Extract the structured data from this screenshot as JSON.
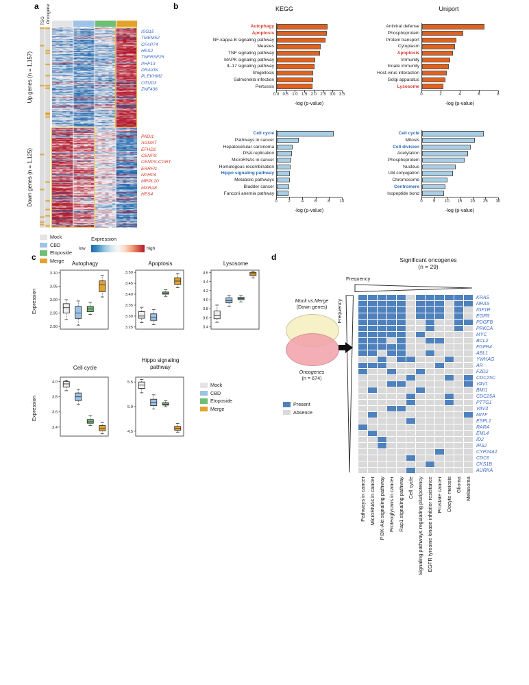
{
  "panel_labels": {
    "a": "a",
    "b": "b",
    "c": "c",
    "d": "d"
  },
  "panel_a": {
    "annotation_headers": [
      "TSG",
      "Oncogene"
    ],
    "up_axis_label": "Up genes (n = 1,157)",
    "down_axis_label": "Down genes (n = 1,125)",
    "up_genes": [
      "ISG15",
      "TMEM52",
      "CFAP74",
      "HES2",
      "TNFRSF25",
      "PHF13",
      "DRAXIN",
      "PLEKHM2",
      "OTUD3",
      "ZNF436"
    ],
    "down_genes": [
      "PADI1",
      "AGMAT",
      "EFHD2",
      "CENPS",
      "CENPS-CORT",
      "ERRFI1",
      "NPHP4",
      "MRPL20",
      "MXRA8",
      "HES4"
    ],
    "up_gene_color": "#3b6ac4",
    "down_gene_color": "#d63b2f",
    "legend": [
      {
        "label": "Mock",
        "color": "#e4e4e4"
      },
      {
        "label": "CBD",
        "color": "#9dc3e6"
      },
      {
        "label": "Etoposide",
        "color": "#6fbf73"
      },
      {
        "label": "Merge",
        "color": "#e2a32d"
      }
    ],
    "expression_legend": {
      "title": "Expression",
      "low": "low",
      "high": "high"
    }
  },
  "panel_b": {
    "left_title": "KEGG",
    "right_title": "Uniport"
  },
  "panel_c": {
    "ylabel": "Expression",
    "legend": [
      {
        "label": "Mock",
        "color": "#e4e4e4"
      },
      {
        "label": "CBD",
        "color": "#9dc3e6"
      },
      {
        "label": "Etoposide",
        "color": "#6fbf73"
      },
      {
        "label": "Merge",
        "color": "#e2a32d"
      }
    ]
  },
  "panel_d": {
    "title_line1": "Significant oncogenes",
    "title_line2": "(n = 29)",
    "frequency_label": "Frequency",
    "venn_top_line1": "Mock vs.Merge",
    "venn_top_line2": "(Down genes)",
    "venn_bottom_line1": "Oncogenes",
    "venn_bottom_line2": "(n = 674)",
    "legend_present": "Present",
    "legend_absent": "Absence"
  },
  "chart_data": [
    {
      "id": "heatmap_up_down",
      "type": "heatmap",
      "col_groups": [
        "Mock",
        "CBD",
        "Etoposide",
        "Merge"
      ],
      "annotation_cols": [
        "TSG",
        "Oncogene"
      ],
      "row_blocks": [
        {
          "label": "Up genes (n = 1,157)",
          "n_genes": 1157,
          "rows_drawn": 146,
          "group_bias": [
            -0.35,
            -0.55,
            -0.35,
            0.8
          ]
        },
        {
          "label": "Down genes (n = 1,125)",
          "n_genes": 1125,
          "rows_drawn": 146,
          "group_bias": [
            0.8,
            0.5,
            -0.05,
            -0.7
          ]
        }
      ],
      "highlights": [
        {
          "block": "up",
          "start_group": 3,
          "span": 1
        },
        {
          "block": "down",
          "start_group": 0,
          "span": 2
        }
      ],
      "colorscale": {
        "low_color": "#2166ac",
        "mid_color": "#f7f7f7",
        "high_color": "#b2182b",
        "low_label": "low",
        "high_label": "high",
        "title": "Expression"
      }
    },
    {
      "id": "kegg_up",
      "type": "bar",
      "orientation": "horizontal",
      "title": "KEGG",
      "xlabel": "-log (p-value)",
      "xlim": [
        0,
        3.5
      ],
      "xticks": [
        "0.0",
        "0.5",
        "1.0",
        "1.5",
        "2.0",
        "2.5",
        "3.0",
        "3.5"
      ],
      "bar_color": "#e2611c",
      "categories": [
        "Autophagy",
        "Apoptosis",
        "NF-kappa B signaling pathway",
        "Measles",
        "TNF signaling pathway",
        "MAPK signaling pathway",
        "IL-17 signaling pathway",
        "Shigellosis",
        "Salmonella infection",
        "Pertussis"
      ],
      "values": [
        2.7,
        2.65,
        2.6,
        2.35,
        2.3,
        2.05,
        2.0,
        1.95,
        1.95,
        1.9
      ],
      "highlight": {
        "labels": [
          "Autophagy",
          "Apoptosis"
        ],
        "color": "#d63b2f"
      }
    },
    {
      "id": "uniport_up",
      "type": "bar",
      "orientation": "horizontal",
      "title": "Uniport",
      "xlabel": "-log (p-value)",
      "xlim": [
        0,
        8
      ],
      "xticks": [
        "0",
        "2",
        "4",
        "6",
        "8"
      ],
      "bar_color": "#e2611c",
      "categories": [
        "Antiviral defense",
        "Phosphoprotein",
        "Protein transport",
        "Cytoplasm",
        "Apoptosis",
        "Immunity",
        "Innate immunity",
        "Host-virus interaction",
        "Golgi apparatus",
        "Lysosome"
      ],
      "values": [
        6.5,
        4.3,
        3.6,
        3.4,
        3.2,
        2.9,
        2.8,
        2.6,
        2.4,
        2.2
      ],
      "highlight": {
        "labels": [
          "Apoptosis",
          "Lysosome"
        ],
        "color": "#d63b2f"
      }
    },
    {
      "id": "kegg_down",
      "type": "bar",
      "orientation": "horizontal",
      "title": "",
      "xlabel": "-log (p-value)",
      "xlim": [
        0,
        10
      ],
      "xticks": [
        "0",
        "2",
        "4",
        "6",
        "8",
        "10"
      ],
      "bar_color": "#a8cfe5",
      "categories": [
        "Cell cycle",
        "Pathways in cancer",
        "Hepatocellular carcinoma",
        "DNA replication",
        "MicroRNAs in cancer",
        "Homologous recombination",
        "Hippo signaling pathway",
        "Metabolic pathways",
        "Bladder cancer",
        "Fanconi anemia pathway"
      ],
      "values": [
        8.6,
        3.3,
        2.4,
        2.3,
        2.2,
        2.1,
        2.0,
        2.0,
        1.9,
        1.8
      ],
      "highlight": {
        "labels": [
          "Cell cycle",
          "Hippo signaling pathway"
        ],
        "color": "#2e6db4"
      }
    },
    {
      "id": "uniport_down",
      "type": "bar",
      "orientation": "horizontal",
      "title": "",
      "xlabel": "-log (p-value)",
      "xlim": [
        0,
        30
      ],
      "xticks": [
        "0",
        "5",
        "10",
        "15",
        "20",
        "25",
        "30"
      ],
      "bar_color": "#a8cfe5",
      "categories": [
        "Cell cycle",
        "Mitosis",
        "Cell division",
        "Acetylation",
        "Phosphoprotein",
        "Nucleus",
        "Ubl conjugation",
        "Chromosome",
        "Centromere",
        "Isopeptide bond"
      ],
      "values": [
        24,
        20.5,
        19,
        18,
        16.5,
        13,
        12,
        10,
        9,
        8.5
      ],
      "highlight": {
        "labels": [
          "Cell cycle",
          "Cell division",
          "Centromere"
        ],
        "color": "#2e6db4"
      }
    },
    {
      "id": "box_autophagy",
      "type": "box",
      "title": "Autophagy",
      "ylabel": "Expression",
      "ylim": [
        2.89,
        3.11
      ],
      "yticks": [
        "2.90",
        "2.95",
        "3.00",
        "3.05",
        "3.10"
      ],
      "groups": [
        {
          "name": "Mock",
          "color": "#efefef",
          "lo": 2.925,
          "q1": 2.95,
          "med": 2.97,
          "q3": 2.985,
          "hi": 3.0
        },
        {
          "name": "CBD",
          "color": "#9dc3e6",
          "lo": 2.905,
          "q1": 2.93,
          "med": 2.95,
          "q3": 2.975,
          "hi": 2.995
        },
        {
          "name": "Etoposide",
          "color": "#6fbf73",
          "lo": 2.945,
          "q1": 2.955,
          "med": 2.965,
          "q3": 2.975,
          "hi": 2.99
        },
        {
          "name": "Merge",
          "color": "#e2a32d",
          "lo": 3.01,
          "q1": 3.03,
          "med": 3.055,
          "q3": 3.07,
          "hi": 3.09
        }
      ]
    },
    {
      "id": "box_apoptosis",
      "type": "box",
      "title": "Apoptosis",
      "ylabel": "Expression",
      "ylim": [
        3.24,
        3.51
      ],
      "yticks": [
        "3.25",
        "3.30",
        "3.35",
        "3.40",
        "3.45",
        "3.50"
      ],
      "groups": [
        {
          "name": "Mock",
          "color": "#efefef",
          "lo": 3.27,
          "q1": 3.29,
          "med": 3.3,
          "q3": 3.32,
          "hi": 3.34
        },
        {
          "name": "CBD",
          "color": "#9dc3e6",
          "lo": 3.26,
          "q1": 3.28,
          "med": 3.295,
          "q3": 3.31,
          "hi": 3.33
        },
        {
          "name": "Etoposide",
          "color": "#6fbf73",
          "lo": 3.39,
          "q1": 3.4,
          "med": 3.405,
          "q3": 3.41,
          "hi": 3.42
        },
        {
          "name": "Merge",
          "color": "#e2a32d",
          "lo": 3.43,
          "q1": 3.445,
          "med": 3.46,
          "q3": 3.475,
          "hi": 3.495
        }
      ]
    },
    {
      "id": "box_lysosome",
      "type": "box",
      "title": "Lysosome",
      "ylabel": "Expression",
      "ylim": [
        3.35,
        4.65
      ],
      "yticks": [
        "3.4",
        "3.6",
        "3.8",
        "4.0",
        "4.2",
        "4.4",
        "4.6"
      ],
      "groups": [
        {
          "name": "Mock",
          "color": "#efefef",
          "lo": 3.5,
          "q1": 3.58,
          "med": 3.65,
          "q3": 3.75,
          "hi": 3.88
        },
        {
          "name": "CBD",
          "color": "#9dc3e6",
          "lo": 3.85,
          "q1": 3.93,
          "med": 3.98,
          "q3": 4.04,
          "hi": 4.1
        },
        {
          "name": "Etoposide",
          "color": "#6fbf73",
          "lo": 3.95,
          "q1": 4.0,
          "med": 4.02,
          "q3": 4.05,
          "hi": 4.1
        },
        {
          "name": "Merge",
          "color": "#e2a32d",
          "lo": 4.48,
          "q1": 4.53,
          "med": 4.57,
          "q3": 4.6,
          "hi": 4.62
        }
      ]
    },
    {
      "id": "box_cellcycle",
      "type": "box",
      "title": "Cell cycle",
      "ylabel": "Expression",
      "ylim": [
        3.28,
        4.06
      ],
      "yticks": [
        "3.4",
        "3.6",
        "3.8",
        "4.0"
      ],
      "groups": [
        {
          "name": "Mock",
          "color": "#efefef",
          "lo": 3.88,
          "q1": 3.93,
          "med": 3.97,
          "q3": 4.0,
          "hi": 4.02
        },
        {
          "name": "CBD",
          "color": "#9dc3e6",
          "lo": 3.7,
          "q1": 3.75,
          "med": 3.8,
          "q3": 3.85,
          "hi": 3.9
        },
        {
          "name": "Etoposide",
          "color": "#6fbf73",
          "lo": 3.42,
          "q1": 3.45,
          "med": 3.47,
          "q3": 3.5,
          "hi": 3.55
        },
        {
          "name": "Merge",
          "color": "#e2a32d",
          "lo": 3.31,
          "q1": 3.35,
          "med": 3.38,
          "q3": 3.42,
          "hi": 3.46
        }
      ]
    },
    {
      "id": "box_hippo",
      "type": "box",
      "title": "Hippo signaling pathway",
      "ylabel": "Expression",
      "ylim": [
        4.4,
        5.6
      ],
      "yticks": [
        "4.5",
        "5.0",
        "5.5"
      ],
      "groups": [
        {
          "name": "Mock",
          "color": "#efefef",
          "lo": 5.28,
          "q1": 5.37,
          "med": 5.44,
          "q3": 5.5,
          "hi": 5.55
        },
        {
          "name": "CBD",
          "color": "#9dc3e6",
          "lo": 4.95,
          "q1": 5.02,
          "med": 5.08,
          "q3": 5.15,
          "hi": 5.24
        },
        {
          "name": "Etoposide",
          "color": "#6fbf73",
          "lo": 5.0,
          "q1": 5.03,
          "med": 5.05,
          "q3": 5.08,
          "hi": 5.12
        },
        {
          "name": "Merge",
          "color": "#e2a32d",
          "lo": 4.48,
          "q1": 4.52,
          "med": 4.56,
          "q3": 4.6,
          "hi": 4.66
        }
      ]
    },
    {
      "id": "oncogene_grid",
      "type": "heatmap",
      "title": "Significant oncogenes (n = 29)",
      "present_color": "#4f81bd",
      "absent_color": "#d9d9d9",
      "columns": [
        "Pathways in cancer",
        "MicroRNAs in cancer",
        "PI3K-Akt signaling pathway",
        "Proteoglycans in cancer",
        "Rap1 signaling pathway",
        "Cell cycle",
        "Signaling pathways regulating pluripotency",
        "EGFR tyrosine kinase inhibitor resistance",
        "Prostate cancer",
        "Oocyte meiosis",
        "Glioma",
        "Melanoma"
      ],
      "rows": [
        "KRAS",
        "NRAS",
        "IGF1R",
        "EGFR",
        "PDGFB",
        "PRKCA",
        "MYC",
        "BCL2",
        "FGFR4",
        "ABL1",
        "YWHAG",
        "AR",
        "FZD2",
        "CDC25C",
        "VAV1",
        "BMI1",
        "CDC25A",
        "PTTG1",
        "VAV3",
        "MITF",
        "ESPL1",
        "RARA",
        "EML4",
        "ID2",
        "IRS2",
        "CYP24A1",
        "CDC6",
        "CKS1B",
        "AURKA"
      ],
      "matrix": [
        [
          1,
          1,
          1,
          1,
          1,
          0,
          1,
          1,
          1,
          1,
          1,
          1
        ],
        [
          1,
          1,
          1,
          1,
          1,
          0,
          1,
          1,
          1,
          0,
          1,
          1
        ],
        [
          1,
          1,
          1,
          1,
          1,
          0,
          1,
          1,
          1,
          0,
          1,
          0
        ],
        [
          1,
          1,
          1,
          1,
          1,
          0,
          1,
          1,
          1,
          0,
          1,
          0
        ],
        [
          1,
          1,
          1,
          1,
          1,
          0,
          0,
          1,
          0,
          0,
          1,
          1
        ],
        [
          1,
          1,
          1,
          1,
          1,
          0,
          0,
          1,
          0,
          0,
          1,
          0
        ],
        [
          1,
          1,
          1,
          1,
          1,
          0,
          1,
          0,
          0,
          0,
          0,
          0
        ],
        [
          1,
          1,
          1,
          0,
          1,
          0,
          0,
          1,
          1,
          0,
          0,
          0
        ],
        [
          1,
          1,
          1,
          1,
          1,
          0,
          0,
          0,
          0,
          0,
          0,
          0
        ],
        [
          1,
          1,
          0,
          1,
          1,
          0,
          0,
          1,
          0,
          0,
          0,
          0
        ],
        [
          0,
          0,
          1,
          0,
          1,
          1,
          0,
          0,
          0,
          1,
          0,
          0
        ],
        [
          1,
          1,
          1,
          0,
          0,
          0,
          0,
          0,
          1,
          0,
          0,
          0
        ],
        [
          1,
          0,
          0,
          1,
          0,
          0,
          1,
          0,
          0,
          0,
          0,
          0
        ],
        [
          0,
          0,
          0,
          0,
          0,
          1,
          0,
          0,
          0,
          1,
          0,
          1
        ],
        [
          0,
          0,
          0,
          1,
          1,
          0,
          0,
          0,
          0,
          0,
          0,
          1
        ],
        [
          0,
          1,
          0,
          0,
          0,
          0,
          1,
          0,
          0,
          0,
          0,
          0
        ],
        [
          0,
          0,
          0,
          0,
          0,
          1,
          0,
          0,
          0,
          1,
          0,
          0
        ],
        [
          0,
          0,
          0,
          0,
          0,
          1,
          0,
          0,
          0,
          1,
          0,
          0
        ],
        [
          0,
          0,
          0,
          1,
          1,
          0,
          0,
          0,
          0,
          0,
          0,
          0
        ],
        [
          0,
          1,
          0,
          0,
          0,
          0,
          0,
          0,
          0,
          0,
          0,
          1
        ],
        [
          0,
          0,
          0,
          0,
          0,
          1,
          0,
          0,
          0,
          0,
          0,
          0
        ],
        [
          1,
          0,
          0,
          0,
          0,
          0,
          0,
          0,
          0,
          0,
          0,
          0
        ],
        [
          0,
          1,
          0,
          0,
          0,
          0,
          0,
          0,
          0,
          0,
          0,
          0
        ],
        [
          0,
          0,
          1,
          0,
          0,
          0,
          0,
          0,
          0,
          0,
          0,
          0
        ],
        [
          0,
          0,
          1,
          0,
          0,
          0,
          0,
          0,
          0,
          0,
          0,
          0
        ],
        [
          0,
          0,
          0,
          0,
          0,
          0,
          0,
          0,
          1,
          0,
          0,
          0
        ],
        [
          0,
          0,
          0,
          0,
          0,
          1,
          0,
          0,
          0,
          0,
          0,
          0
        ],
        [
          0,
          0,
          0,
          0,
          0,
          0,
          0,
          1,
          0,
          0,
          0,
          0
        ],
        [
          0,
          0,
          0,
          0,
          0,
          1,
          0,
          0,
          0,
          0,
          0,
          0
        ]
      ]
    }
  ]
}
